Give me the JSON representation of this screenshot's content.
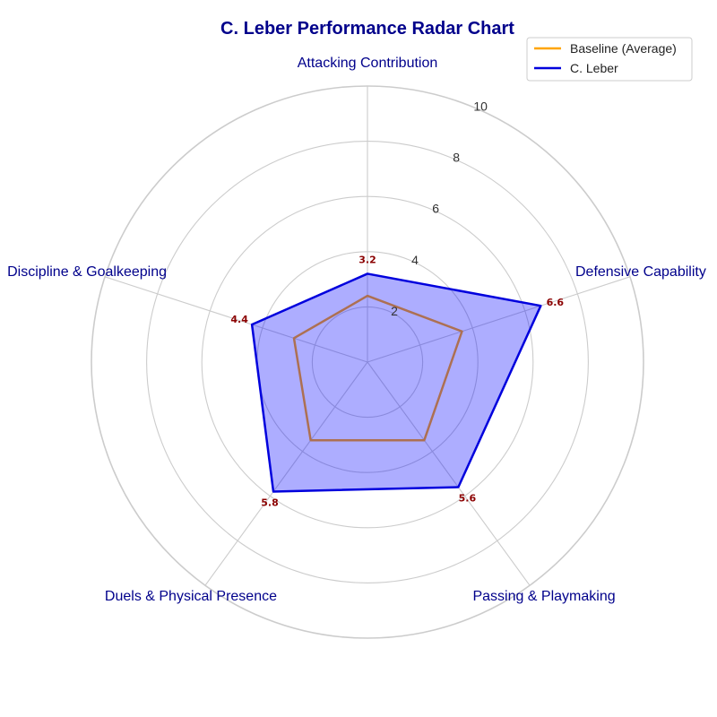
{
  "chart_data": {
    "type": "radar",
    "title": "C. Leber Performance Radar Chart",
    "categories": [
      "Attacking Contribution",
      "Defensive Capability",
      "Passing & Playmaking",
      "Duels & Physical Presence",
      "Discipline & Goalkeeping"
    ],
    "rlim": [
      0,
      10
    ],
    "rticks": [
      2,
      4,
      6,
      8,
      10
    ],
    "grid": true,
    "legend_position": "top-right",
    "series": [
      {
        "name": "Baseline (Average)",
        "values": [
          2.4,
          3.6,
          3.5,
          3.5,
          2.8
        ],
        "color": "#ffa500",
        "fill": false
      },
      {
        "name": "C. Leber",
        "values": [
          3.2,
          6.6,
          5.6,
          5.8,
          4.4
        ],
        "color": "#0000dd",
        "fill": true,
        "fill_color": "#0000ff",
        "labels": [
          "3.2",
          "6.6",
          "5.6",
          "5.8",
          "4.4"
        ]
      }
    ]
  }
}
